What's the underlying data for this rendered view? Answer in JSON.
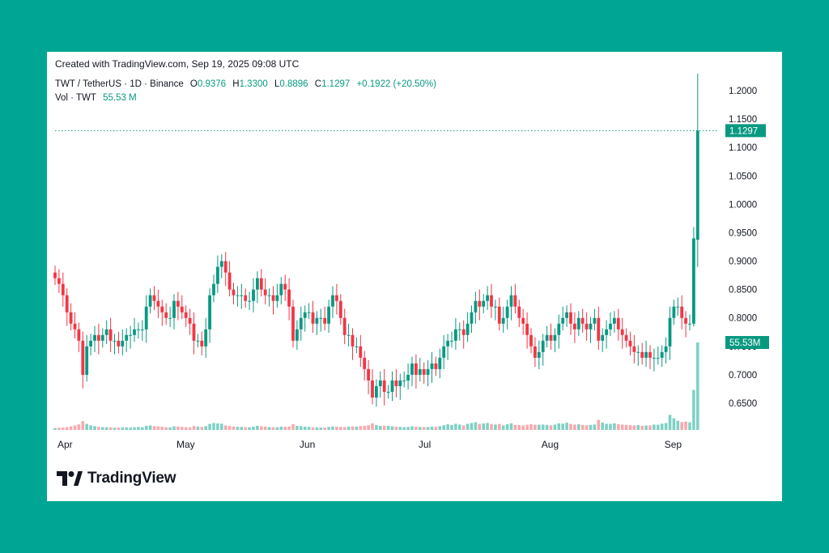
{
  "header": {
    "created": "Created with TradingView.com, Sep 19, 2025 09:08 UTC",
    "symbol": "TWT / TetherUS · 1D · Binance",
    "o_label": "O",
    "o_value": "0.9376",
    "h_label": "H",
    "h_value": "1.3300",
    "l_label": "L",
    "l_value": "0.8896",
    "c_label": "C",
    "c_value": "1.1297",
    "change": "+0.1922 (+20.50%)",
    "vol_label": "Vol · TWT",
    "vol_value": "55.53 M"
  },
  "brand": {
    "name": "TradingView"
  },
  "colors": {
    "up": "#089981",
    "down": "#f23645",
    "vol_up": "#7fd1c4",
    "vol_down": "#f7a9af",
    "frame": "#00a693"
  },
  "chart_data": {
    "type": "candlestick",
    "y_ticks": [
      "0.6500",
      "0.7000",
      "0.7500",
      "0.8000",
      "0.8500",
      "0.9000",
      "0.9500",
      "1.0000",
      "1.0500",
      "1.1000",
      "1.1500",
      "1.2000"
    ],
    "x_ticks": [
      {
        "label": "Apr",
        "day": 0
      },
      {
        "label": "May",
        "day": 30
      },
      {
        "label": "Jun",
        "day": 61
      },
      {
        "label": "Jul",
        "day": 91
      },
      {
        "label": "Aug",
        "day": 122
      },
      {
        "label": "Sep",
        "day": 153
      }
    ],
    "price_badge": "1.1297",
    "volume_badge": "55.53M",
    "last_price": 1.1297,
    "close": [
      0.87,
      0.86,
      0.84,
      0.81,
      0.79,
      0.78,
      0.76,
      0.7,
      0.75,
      0.76,
      0.77,
      0.76,
      0.77,
      0.78,
      0.76,
      0.76,
      0.75,
      0.76,
      0.77,
      0.77,
      0.78,
      0.78,
      0.78,
      0.82,
      0.84,
      0.83,
      0.82,
      0.81,
      0.8,
      0.8,
      0.83,
      0.82,
      0.81,
      0.8,
      0.79,
      0.76,
      0.76,
      0.75,
      0.78,
      0.84,
      0.86,
      0.89,
      0.9,
      0.88,
      0.85,
      0.84,
      0.84,
      0.84,
      0.83,
      0.83,
      0.85,
      0.87,
      0.85,
      0.84,
      0.84,
      0.83,
      0.84,
      0.86,
      0.85,
      0.82,
      0.76,
      0.78,
      0.8,
      0.81,
      0.81,
      0.79,
      0.8,
      0.8,
      0.79,
      0.82,
      0.84,
      0.83,
      0.8,
      0.77,
      0.77,
      0.75,
      0.75,
      0.73,
      0.71,
      0.69,
      0.66,
      0.68,
      0.69,
      0.67,
      0.67,
      0.69,
      0.68,
      0.69,
      0.69,
      0.7,
      0.72,
      0.7,
      0.71,
      0.7,
      0.71,
      0.72,
      0.71,
      0.73,
      0.75,
      0.76,
      0.76,
      0.78,
      0.78,
      0.77,
      0.79,
      0.81,
      0.83,
      0.82,
      0.83,
      0.84,
      0.82,
      0.82,
      0.79,
      0.8,
      0.82,
      0.84,
      0.82,
      0.8,
      0.79,
      0.77,
      0.75,
      0.73,
      0.74,
      0.76,
      0.77,
      0.76,
      0.77,
      0.79,
      0.8,
      0.81,
      0.79,
      0.78,
      0.8,
      0.79,
      0.78,
      0.79,
      0.8,
      0.76,
      0.77,
      0.78,
      0.79,
      0.8,
      0.78,
      0.77,
      0.76,
      0.75,
      0.74,
      0.74,
      0.73,
      0.74,
      0.73,
      0.73,
      0.73,
      0.74,
      0.75,
      0.8,
      0.82,
      0.82,
      0.8,
      0.79,
      0.79,
      0.94,
      1.1297
    ],
    "volume_m": [
      1.2,
      1.4,
      1.5,
      1.8,
      2.2,
      2.8,
      3.5,
      5.6,
      3.8,
      2.9,
      2.4,
      2.0,
      1.8,
      1.7,
      1.6,
      1.4,
      1.5,
      1.6,
      1.6,
      1.5,
      1.7,
      1.9,
      1.7,
      2.6,
      2.9,
      2.4,
      2.2,
      2.0,
      1.7,
      1.6,
      2.3,
      2.2,
      2.0,
      1.7,
      1.6,
      2.5,
      2.1,
      1.9,
      2.4,
      3.8,
      4.4,
      4.1,
      4.0,
      2.9,
      2.5,
      2.2,
      2.0,
      1.9,
      1.7,
      1.7,
      2.1,
      2.6,
      2.3,
      2.1,
      1.8,
      1.7,
      1.7,
      2.1,
      2.0,
      2.2,
      3.6,
      2.6,
      2.4,
      2.1,
      1.9,
      1.7,
      1.6,
      1.5,
      1.5,
      1.9,
      2.2,
      2.0,
      1.9,
      1.8,
      2.0,
      2.2,
      2.1,
      2.4,
      2.6,
      3.0,
      4.2,
      3.1,
      2.6,
      2.7,
      2.6,
      2.3,
      2.1,
      1.9,
      1.8,
      1.9,
      2.3,
      2.1,
      1.9,
      1.8,
      1.9,
      2.1,
      2.0,
      2.4,
      3.0,
      3.6,
      3.2,
      3.9,
      3.4,
      2.9,
      3.9,
      4.4,
      4.9,
      3.8,
      4.1,
      4.4,
      3.7,
      3.4,
      3.8,
      2.8,
      3.6,
      4.2,
      3.2,
      3.1,
      2.8,
      3.3,
      3.6,
      3.3,
      3.3,
      3.4,
      3.2,
      2.9,
      3.4,
      4.2,
      4.0,
      4.6,
      3.8,
      3.4,
      3.6,
      3.2,
      3.0,
      3.2,
      3.4,
      6.4,
      4.7,
      3.9,
      3.8,
      4.2,
      3.6,
      3.4,
      3.2,
      3.0,
      2.9,
      3.1,
      2.7,
      2.8,
      2.9,
      3.4,
      3.3,
      4.0,
      4.4,
      9.6,
      7.4,
      5.8,
      5.0,
      5.4,
      4.8,
      25.4,
      55.53
    ]
  }
}
